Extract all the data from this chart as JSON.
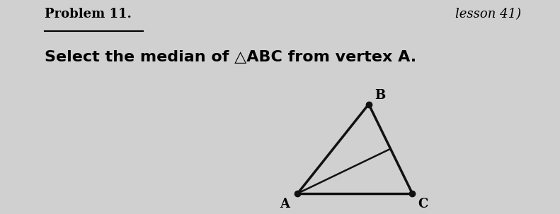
{
  "title_left": "Problem 11.",
  "title_right": "lesson 41)",
  "subtitle": "Select the median of △ABC from vertex A.",
  "background_color": "#d0d0d0",
  "vertices": {
    "A": [
      0.0,
      0.0
    ],
    "B": [
      0.62,
      0.78
    ],
    "C": [
      1.0,
      0.0
    ]
  },
  "triangle_color": "#111111",
  "triangle_linewidth": 2.5,
  "median_color": "#111111",
  "median_linewidth": 1.8,
  "vertex_dot_size": 6,
  "vertex_label_fontsize": 13,
  "title_fontsize": 13,
  "subtitle_fontsize": 16
}
